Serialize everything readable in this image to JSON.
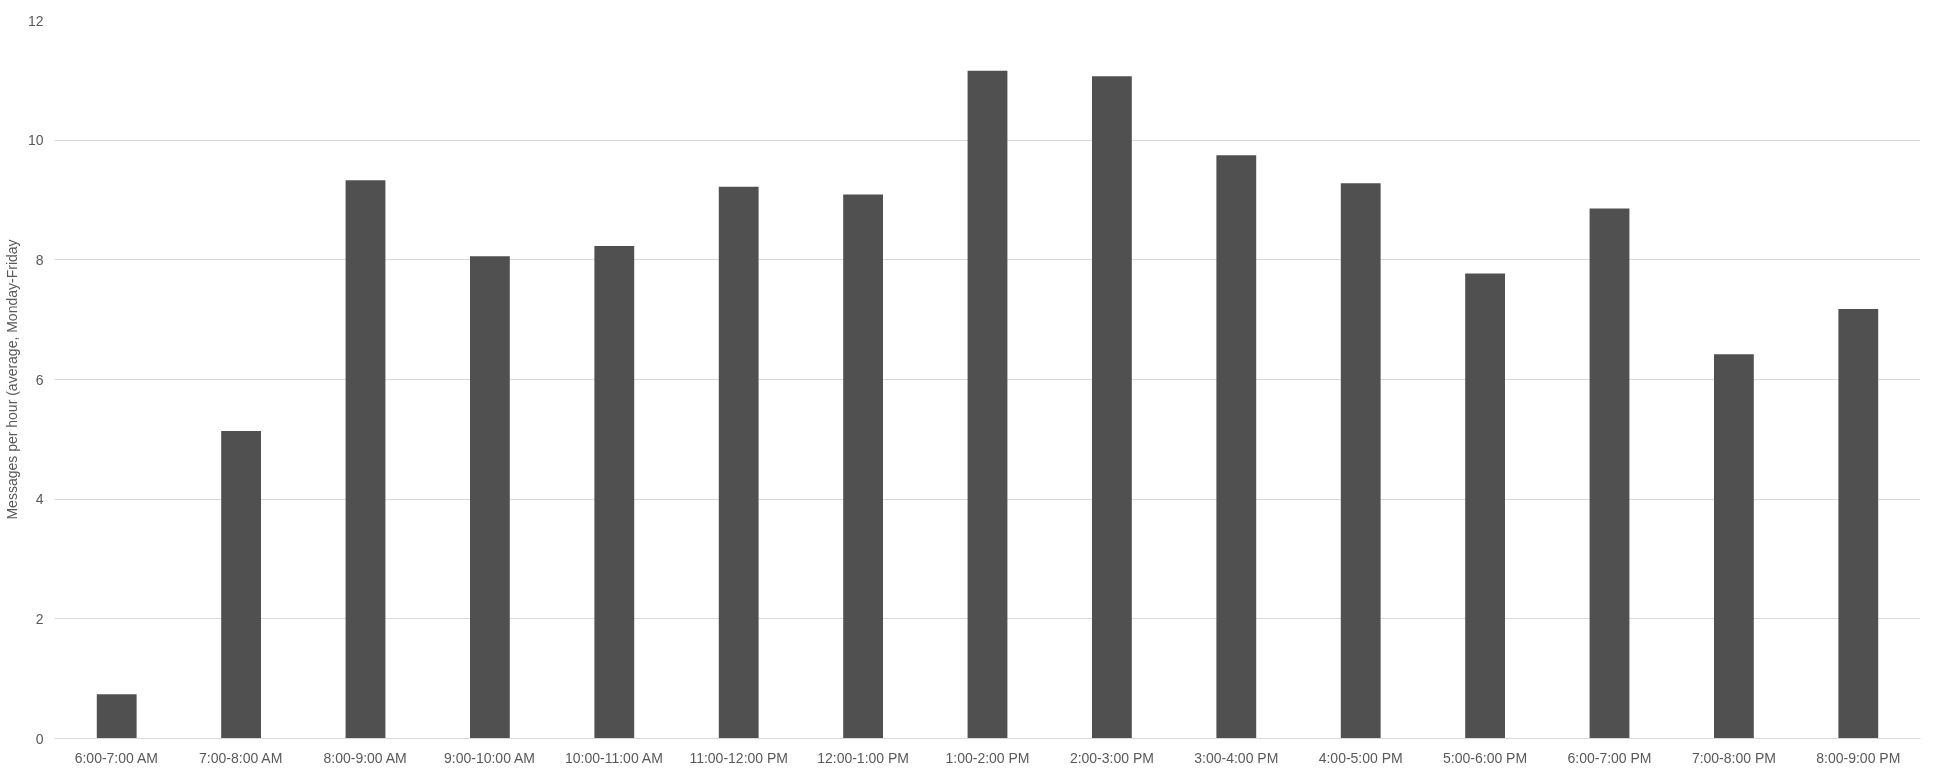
{
  "chart_data": {
    "type": "bar",
    "ylabel": "Messages per hour (average, Monday-Friday",
    "categories": [
      "6:00-7:00 AM",
      "7:00-8:00 AM",
      "8:00-9:00 AM",
      "9:00-10:00 AM",
      "10:00-11:00 AM",
      "11:00-12:00 PM",
      "12:00-1:00 PM",
      "1:00-2:00 PM",
      "2:00-3:00 PM",
      "3:00-4:00 PM",
      "4:00-5:00 PM",
      "5:00-6:00 PM",
      "6:00-7:00 PM",
      "7:00-8:00 PM",
      "8:00-9:00 PM"
    ],
    "values": [
      0.74,
      5.14,
      9.33,
      8.06,
      8.23,
      9.22,
      9.09,
      11.16,
      11.07,
      9.75,
      9.28,
      7.77,
      8.86,
      6.42,
      7.18
    ],
    "color": "#505050",
    "ylim": [
      0,
      12
    ],
    "yticks": [
      0,
      2,
      4,
      6,
      8,
      10,
      12
    ],
    "grid": "y"
  }
}
